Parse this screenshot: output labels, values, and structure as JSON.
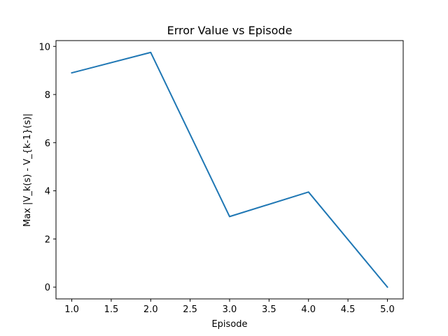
{
  "chart_data": {
    "type": "line",
    "title": "Error Value vs Episode",
    "xlabel": "Episode",
    "ylabel": "Max |V_k(s) - V_{k-1}(s)|",
    "xlim": [
      0.8,
      5.2
    ],
    "ylim": [
      -0.49,
      10.24
    ],
    "x_ticks": [
      1.0,
      1.5,
      2.0,
      2.5,
      3.0,
      3.5,
      4.0,
      4.5,
      5.0
    ],
    "x_tick_labels": [
      "1.0",
      "1.5",
      "2.0",
      "2.5",
      "3.0",
      "3.5",
      "4.0",
      "4.5",
      "5.0"
    ],
    "y_ticks": [
      0,
      2,
      4,
      6,
      8,
      10
    ],
    "y_tick_labels": [
      "0",
      "2",
      "4",
      "6",
      "8",
      "10"
    ],
    "grid": false,
    "series": [
      {
        "color": "#1f77b4",
        "x": [
          1,
          2,
          3,
          4,
          5
        ],
        "y": [
          8.9,
          9.75,
          2.93,
          3.95,
          0.0
        ]
      }
    ]
  }
}
